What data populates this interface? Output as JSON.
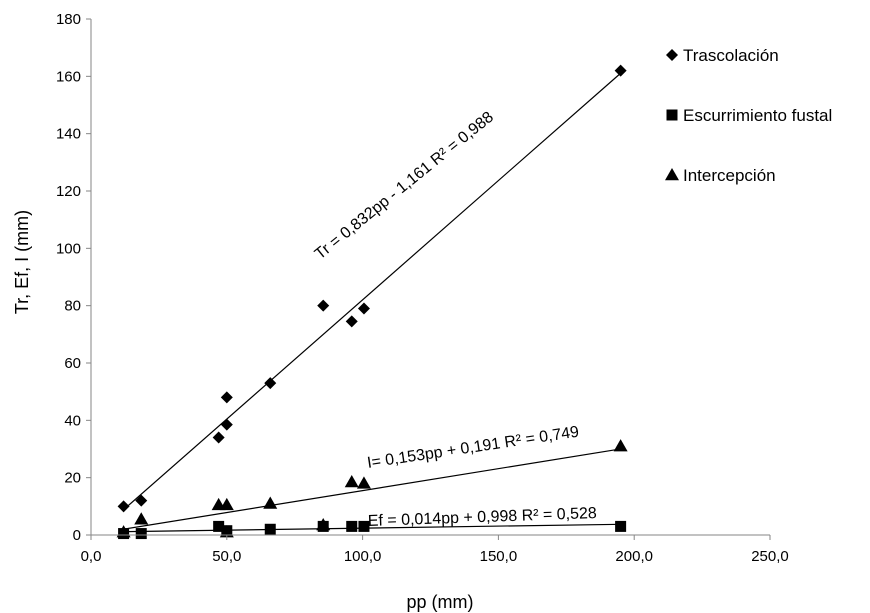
{
  "chart_data": {
    "type": "scatter",
    "xlabel": "pp (mm)",
    "ylabel": "Tr, Ef, I (mm)",
    "xlim": [
      0,
      250
    ],
    "ylim": [
      0,
      180
    ],
    "x_ticks": [
      "0,0",
      "50,0",
      "100,0",
      "150,0",
      "200,0",
      "250,0"
    ],
    "y_ticks": [
      "0",
      "20",
      "40",
      "60",
      "80",
      "100",
      "120",
      "140",
      "160",
      "180"
    ],
    "grid": false,
    "legend_position": "right",
    "series": [
      {
        "name": "Trascolación",
        "marker": "diamond",
        "x": [
          12,
          18.5,
          47,
          50,
          50,
          66,
          85.5,
          96,
          100.5,
          195
        ],
        "y": [
          10,
          12,
          34,
          38.5,
          48,
          53,
          80,
          74.5,
          79,
          162
        ],
        "trendline": {
          "slope": 0.832,
          "intercept": -1.161,
          "x_range": [
            12,
            195
          ]
        },
        "equation": "Tr = 0,832pp - 1,161 R² = 0,988"
      },
      {
        "name": "Escurrimiento fustal",
        "marker": "square",
        "x": [
          12,
          18.5,
          47,
          50,
          66,
          85.5,
          96,
          100.5,
          195
        ],
        "y": [
          0.5,
          0.5,
          3,
          1.5,
          2,
          3,
          3,
          3,
          3
        ],
        "trendline": {
          "slope": 0.014,
          "intercept": 0.998,
          "x_range": [
            12,
            195
          ]
        },
        "equation": "Ef = 0,014pp + 0,998 R² = 0,528"
      },
      {
        "name": "Intercepción",
        "marker": "triangle",
        "x": [
          12,
          18.5,
          47,
          50,
          50,
          66,
          85.5,
          96,
          100.5,
          195
        ],
        "y": [
          1,
          5.5,
          10.5,
          10.5,
          1,
          11,
          3.5,
          18.5,
          18,
          31
        ],
        "trendline": {
          "slope": 0.153,
          "intercept": 0.191,
          "x_range": [
            12,
            195
          ]
        },
        "equation": "I= 0,153pp + 0,191 R² = 0,749"
      }
    ]
  }
}
